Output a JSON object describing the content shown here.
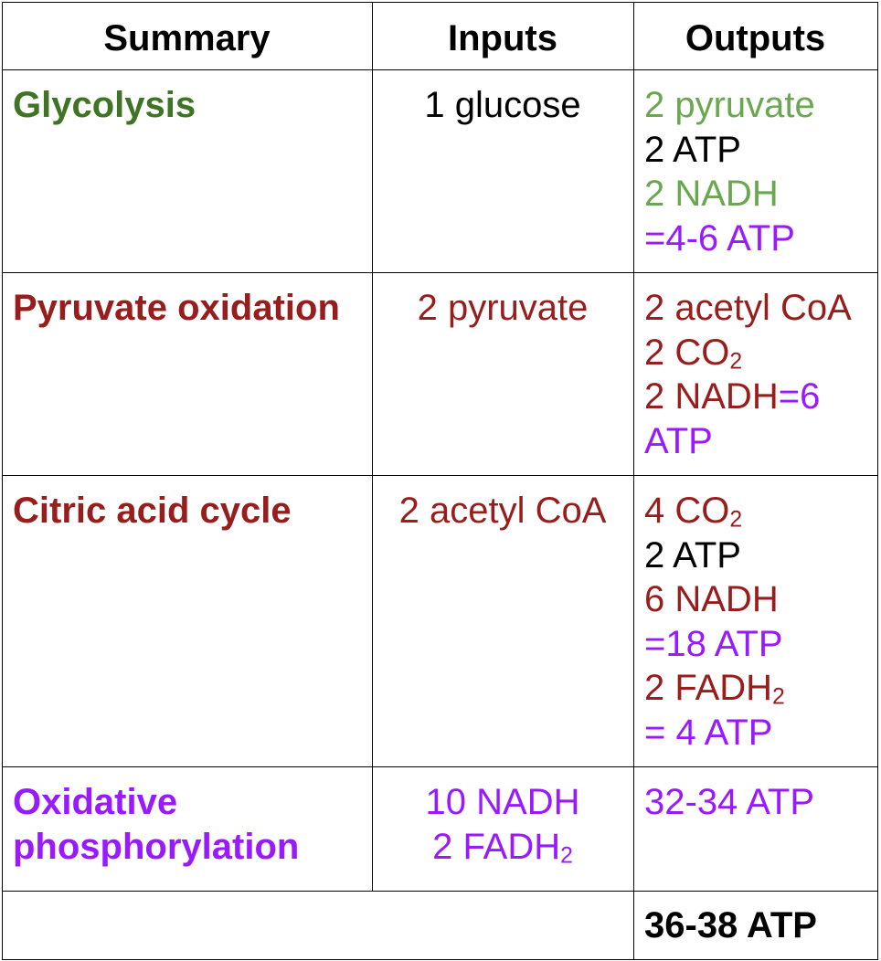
{
  "header": {
    "summary": "Summary",
    "inputs": "Inputs",
    "outputs": "Outputs"
  },
  "rows": [
    {
      "stage": "Glycolysis",
      "inputs": [
        "1 glucose"
      ],
      "outputs": [
        {
          "parts": [
            {
              "t": "2 pyruvate"
            }
          ]
        },
        {
          "parts": [
            {
              "t": "2 ATP"
            }
          ]
        },
        {
          "parts": [
            {
              "t": "2 NADH"
            }
          ]
        },
        {
          "parts": [
            {
              "t": "=4-6 ATP"
            }
          ]
        }
      ]
    },
    {
      "stage": "Pyruvate oxidation",
      "inputs": [
        "2 pyruvate"
      ],
      "outputs": [
        {
          "parts": [
            {
              "t": "2 acetyl CoA"
            }
          ]
        },
        {
          "parts": [
            {
              "t": "2 CO"
            },
            {
              "t": "2"
            }
          ]
        },
        {
          "parts": [
            {
              "t": "2 NADH"
            },
            {
              "t": "=6"
            }
          ]
        },
        {
          "parts": [
            {
              "t": "ATP"
            }
          ]
        }
      ]
    },
    {
      "stage": "Citric acid cycle",
      "inputs": [
        "2 acetyl CoA"
      ],
      "outputs": [
        {
          "parts": [
            {
              "t": "4 CO"
            },
            {
              "t": "2"
            }
          ]
        },
        {
          "parts": [
            {
              "t": "2 ATP"
            }
          ]
        },
        {
          "parts": [
            {
              "t": "6 NADH"
            }
          ]
        },
        {
          "parts": [
            {
              "t": "=18 ATP"
            }
          ]
        },
        {
          "parts": [
            {
              "t": "2 FADH"
            },
            {
              "t": "2"
            }
          ]
        },
        {
          "parts": [
            {
              "t": "= 4 ATP"
            }
          ]
        }
      ]
    },
    {
      "stage_lines": [
        "Oxidative",
        "phosphorylation"
      ],
      "inputs": [
        {
          "parts": [
            {
              "t": "10 NADH"
            }
          ]
        },
        {
          "parts": [
            {
              "t": "2 FADH"
            },
            {
              "t": "2"
            }
          ]
        }
      ],
      "outputs": [
        {
          "parts": [
            {
              "t": "32-34 ATP"
            }
          ]
        }
      ]
    }
  ],
  "total": "36-38 ATP",
  "colors": {
    "glycolysis_stage": "#3f7424",
    "glycolysis_light": "#6aa84f",
    "red": "#981d1d",
    "purple": "#9a1aff",
    "black": "#000000"
  }
}
